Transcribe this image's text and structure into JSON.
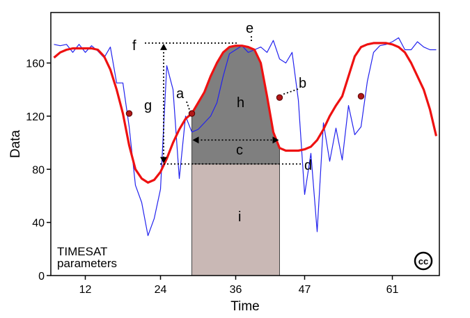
{
  "chart_data": {
    "type": "line",
    "xlabel": "Time",
    "ylabel": "Data",
    "xlim": [
      6.5,
      68.5
    ],
    "ylim": [
      0,
      198
    ],
    "xticks": [
      12,
      24,
      36,
      47,
      61
    ],
    "yticks": [
      0,
      40,
      80,
      120,
      160
    ],
    "grid": false,
    "series": [
      {
        "color": "#2222ee",
        "x": [
          7,
          8,
          9,
          10,
          11,
          12,
          13,
          14,
          15,
          16,
          17,
          18,
          19,
          20,
          21,
          22,
          23,
          24,
          25,
          26,
          27,
          28,
          29,
          30,
          31,
          32,
          33,
          34,
          35,
          36,
          37,
          38,
          39,
          40,
          41,
          42,
          43,
          44,
          45,
          46,
          47,
          48,
          49,
          50,
          51,
          52,
          53,
          54,
          55,
          56,
          57,
          58,
          59,
          60,
          61,
          62,
          63,
          64,
          65,
          66,
          67,
          68
        ],
        "values": [
          174,
          173,
          174,
          168,
          174,
          168,
          173,
          169,
          164,
          172,
          145,
          145,
          112,
          68,
          55,
          30,
          43,
          65,
          158,
          140,
          73,
          120,
          108,
          110,
          115,
          120,
          130,
          150,
          167,
          170,
          173,
          168,
          170,
          172,
          168,
          177,
          163,
          160,
          168,
          132,
          61,
          92,
          33,
          115,
          86,
          111,
          87,
          128,
          106,
          112,
          146,
          168,
          173,
          174,
          176,
          179,
          170,
          170,
          176,
          172,
          170,
          170
        ]
      },
      {
        "color": "#ee1111",
        "x": [
          7,
          8,
          9,
          10,
          11,
          12,
          13,
          14,
          15,
          16,
          17,
          18,
          19,
          20,
          21,
          22,
          23,
          24,
          25,
          26,
          27,
          28,
          29,
          30,
          31,
          32,
          33,
          34,
          35,
          36,
          37,
          38,
          39,
          40,
          41,
          42,
          43,
          44,
          45,
          46,
          47,
          48,
          49,
          50,
          51,
          52,
          53,
          54,
          55,
          56,
          57,
          58,
          59,
          60,
          61,
          62,
          63,
          64,
          65,
          66,
          67,
          68
        ],
        "values": [
          164,
          168,
          170,
          171,
          171,
          171,
          171,
          170,
          165,
          155,
          140,
          122,
          98,
          80,
          73,
          70,
          72,
          78,
          88,
          100,
          110,
          118,
          122,
          130,
          138,
          150,
          160,
          168,
          172,
          173,
          173,
          172,
          170,
          160,
          135,
          108,
          96,
          94,
          94,
          94,
          95,
          97,
          102,
          110,
          120,
          128,
          135,
          150,
          165,
          172,
          174,
          175,
          175,
          175,
          174,
          172,
          168,
          160,
          150,
          140,
          125,
          105
        ]
      }
    ],
    "markers": [
      {
        "x": 19,
        "y": 122
      },
      {
        "x": 29,
        "y": 122
      },
      {
        "x": 43,
        "y": 134
      },
      {
        "x": 56,
        "y": 135
      }
    ],
    "annotations": [
      "a",
      "b",
      "c",
      "d",
      "e",
      "f",
      "g",
      "h",
      "i"
    ],
    "note_lines": [
      "TIMESAT",
      "parameters"
    ],
    "badge": "cc",
    "regions": {
      "season_start_x": 29,
      "season_end_x": 43,
      "base_y": 84,
      "peak_y": 175
    }
  }
}
